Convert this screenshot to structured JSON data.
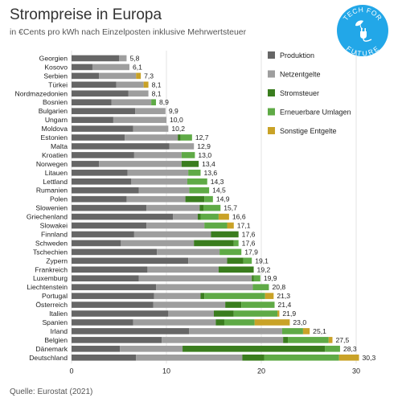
{
  "header": {
    "title": "Strompreise in Europa",
    "subtitle": "in €Cents pro kWh nach Einzelposten inklusive Mehrwertsteuer",
    "source": "Quelle: Eurostat (2021)"
  },
  "badge": {
    "line1": "TECH FOR",
    "line2": "FUTURE",
    "icon": "plug-leaf-icon",
    "color": "#22a7e8"
  },
  "chart_data": {
    "type": "bar",
    "orientation": "horizontal",
    "stacked": true,
    "title": "Strompreise in Europa",
    "subtitle": "in €Cents pro kWh nach Einzelposten inklusive Mehrwertsteuer",
    "xlim": [
      0,
      30
    ],
    "xticks": [
      0,
      10,
      20,
      30
    ],
    "legend_position": "top-right",
    "categories": [
      "Georgien",
      "Kosovo",
      "Serbien",
      "Türkei",
      "Nordmazedonien",
      "Bosnien",
      "Bulgarien",
      "Ungarn",
      "Moldova",
      "Estonien",
      "Malta",
      "Kroatien",
      "Norwegen",
      "Litauen",
      "Lettland",
      "Rumanien",
      "Polen",
      "Slowenien",
      "Griechenland",
      "Slowakei",
      "Finnland",
      "Schweden",
      "Tschechien",
      "Zypern",
      "Frankreich",
      "Luxemburg",
      "Liechtenstein",
      "Portugal",
      "Österreich",
      "Italien",
      "Spanien",
      "Irland",
      "Belgien",
      "Dänemark",
      "Deutschland"
    ],
    "totals_labels": [
      "5,8",
      "6,1",
      "7,3",
      "8,1",
      "8,1",
      "8,9",
      "9,9",
      "10,0",
      "10,2",
      "12,7",
      "12,9",
      "13,0",
      "13,4",
      "13,6",
      "14,3",
      "14,5",
      "14,9",
      "15,7",
      "16,6",
      "17,1",
      "17,6",
      "17,6",
      "17,9",
      "19,1",
      "19,2",
      "19,9",
      "20,8",
      "21,3",
      "21,4",
      "21,9",
      "23,0",
      "25,1",
      "27,5",
      "28,3",
      "30,3"
    ],
    "series": [
      {
        "name": "Produktion",
        "color": "#666666",
        "values": [
          5.0,
          2.2,
          2.9,
          4.7,
          6.0,
          4.2,
          6.7,
          4.4,
          6.5,
          5.6,
          10.3,
          6.6,
          2.9,
          5.9,
          6.3,
          7.1,
          5.8,
          7.9,
          10.7,
          7.9,
          6.6,
          5.2,
          9.0,
          12.3,
          8.0,
          7.1,
          8.9,
          8.7,
          8.6,
          10.2,
          6.5,
          12.4,
          9.5,
          5.1,
          6.8
        ]
      },
      {
        "name": "Netzentgelte",
        "color": "#9e9e9e",
        "values": [
          0.8,
          3.9,
          3.9,
          2.9,
          2.1,
          4.2,
          3.2,
          5.6,
          3.7,
          5.6,
          2.6,
          5.0,
          8.7,
          6.4,
          5.9,
          5.3,
          6.2,
          5.6,
          2.6,
          6.1,
          8.1,
          7.7,
          6.6,
          4.1,
          7.5,
          11.9,
          10.2,
          4.9,
          7.6,
          4.8,
          8.7,
          9.8,
          12.8,
          6.6,
          11.2
        ]
      },
      {
        "name": "Stromsteuer",
        "color": "#3a7d1e",
        "values": [
          0,
          0,
          0,
          0,
          0,
          0,
          0,
          0,
          0,
          0.3,
          0,
          0,
          1.8,
          0,
          0,
          0,
          2.0,
          0.4,
          0.3,
          0,
          2.9,
          4.2,
          0,
          1.7,
          3.7,
          0.2,
          0,
          0.4,
          1.7,
          2.1,
          0.9,
          0,
          0.5,
          15.0,
          2.3
        ]
      },
      {
        "name": "Erneuerbare Umlagen",
        "color": "#5faa46",
        "values": [
          0,
          0,
          0,
          0,
          0,
          0.5,
          0,
          0,
          0,
          1.2,
          0,
          1.4,
          0,
          1.3,
          2.1,
          2.1,
          0.9,
          1.8,
          1.9,
          2.4,
          0,
          0.5,
          2.3,
          0.9,
          0,
          0.7,
          1.7,
          6.4,
          3.5,
          4.6,
          3.2,
          2.2,
          4.3,
          1.6,
          7.9
        ]
      },
      {
        "name": "Sonstige Entgelte",
        "color": "#c9a227",
        "values": [
          0,
          0,
          0.5,
          0.5,
          0,
          0,
          0,
          0,
          0,
          0,
          0,
          0,
          0,
          0,
          0,
          0,
          0,
          0,
          1.1,
          0.7,
          0,
          0,
          0,
          0,
          0,
          0,
          0,
          0.9,
          0,
          0.2,
          3.7,
          0.7,
          0.4,
          0,
          2.1
        ]
      }
    ]
  }
}
